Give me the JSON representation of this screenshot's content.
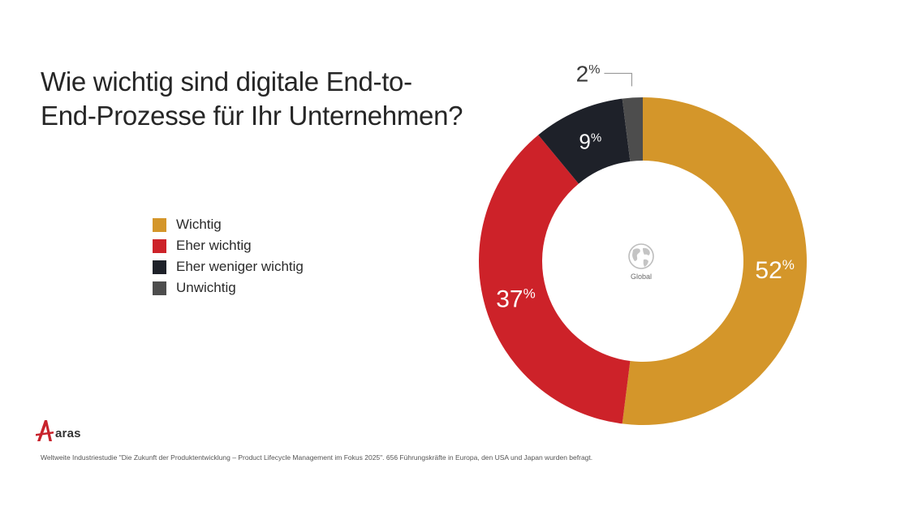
{
  "chart_data": {
    "type": "pie",
    "variant": "donut",
    "title": "Wie wichtig sind digitale End-to-End-Prozesse für Ihr Unternehmen?",
    "title_lines": [
      "Wie wichtig sind digitale End-to-",
      "End-Prozesse für Ihr Unternehmen?"
    ],
    "center_label": "Global",
    "legend_position": "left",
    "slices": [
      {
        "label": "Wichtig",
        "value": 52,
        "display": "52",
        "color": "#D4962A"
      },
      {
        "label": "Eher wichtig",
        "value": 37,
        "display": "37",
        "color": "#CD2229"
      },
      {
        "label": "Eher weniger wichtig",
        "value": 9,
        "display": "9",
        "color": "#1E2129"
      },
      {
        "label": "Unwichtig",
        "value": 2,
        "display": "2",
        "color": "#4D4D4D"
      }
    ],
    "percent_symbol": "%"
  },
  "brand": {
    "logo_text": "aras",
    "logo_color": "#C8232C"
  },
  "footnote": "Weltweite Industriestudie \"Die Zukunft der Produktentwicklung – Product Lifecycle Management im Fokus 2025\". 656 Führungskräfte in Europa, den USA und Japan wurden befragt."
}
